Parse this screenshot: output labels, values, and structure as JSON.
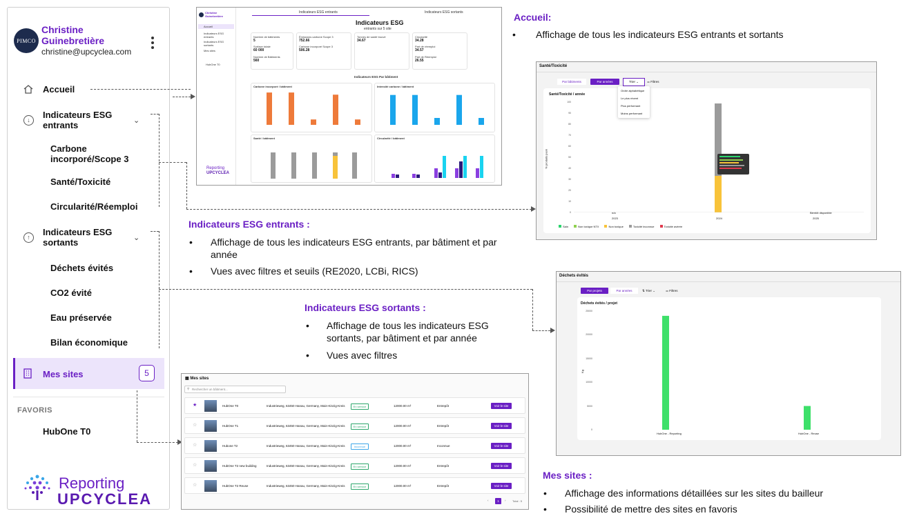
{
  "sidebar": {
    "avatar_text": "PIMCO",
    "user_name": "Christine Guinebretière",
    "user_email": "christine@upcyclea.com",
    "nav": {
      "accueil": "Accueil",
      "esg_entrants": "Indicateurs ESG entrants",
      "sub_entrants": [
        "Carbone incorporé/Scope 3",
        "Santé/Toxicité",
        "Circularité/Réemploi"
      ],
      "esg_sortants": "Indicateurs ESG sortants",
      "sub_sortants": [
        "Déchets évités",
        "CO2 évité",
        "Eau préservée",
        "Bilan économique"
      ],
      "mes_sites": "Mes sites",
      "mes_sites_count": "5"
    },
    "favoris_heading": "FAVORIS",
    "favoris": [
      "HubOne T0"
    ],
    "logo_top": "Reporting",
    "logo_bottom": "UPCYCLEA"
  },
  "annotations": {
    "accueil_title": "Accueil:",
    "accueil_bullets": [
      "Affichage de tous les indicateurs ESG entrants et sortants"
    ],
    "entrants_title": "Indicateurs ESG entrants :",
    "entrants_bullets": [
      "Affichage de tous les indicateurs ESG entrants, par bâtiment et par année",
      "Vues avec filtres et seuils (RE2020, LCBi, RICS)"
    ],
    "sortants_title": "Indicateurs ESG sortants :",
    "sortants_bullets": [
      "Affichage de tous les indicateurs ESG sortants, par bâtiment et par année",
      "Vues avec filtres"
    ],
    "sites_title": "Mes sites :",
    "sites_bullets": [
      "Affichage des informations détaillées sur les sites du bailleur",
      "Possibilité de mettre des sites en favoris"
    ]
  },
  "dashboard": {
    "tab_entrants": "Indicateurs ESG entrants",
    "tab_sortants": "Indicateurs ESG sortants",
    "title": "Indicateurs ESG",
    "subtitle": "entrants sur 5 site",
    "stats": [
      {
        "label": "Nombre de bâtiments",
        "value": "5"
      },
      {
        "label": "Surface totale",
        "value": "60 000"
      },
      {
        "label": "Nombre de Bâtiments",
        "value": "560"
      },
      {
        "label": "Émissions carbone Scope 3",
        "value": "752.66"
      },
      {
        "label": "Carbone incorporé Scope 3",
        "value": "506.28"
      },
      {
        "label": "Tonnes de santé trouvé",
        "value": "34.67"
      },
      {
        "label": "Circularité",
        "value": "34.28"
      },
      {
        "label": "Part de réemploi",
        "value": "34.57"
      },
      {
        "label": "Part de Réemploi",
        "value": "26.55"
      }
    ],
    "section_title": "Indicateurs ESG Par bâtiment",
    "chart_titles": [
      "Carbone incorporé / bâtiment",
      "Intensité carbone / bâtiment",
      "Santé / bâtiment",
      "Circularité / bâtiment"
    ],
    "sidebar_items": [
      "Accueil",
      "Indicateurs ESG entrants",
      "Indicateurs ESG sortants",
      "Mes sites"
    ],
    "sidebar_favs": [
      "HubOne T0"
    ],
    "logo_top": "Reporting",
    "logo_bottom": "UPCYCLEA"
  },
  "sante_panel": {
    "title": "Santé/Toxicité",
    "btn_batiments": "Par bâtiments",
    "btn_annees": "Par années",
    "btn_trier": "Trier",
    "btn_filtres": "Filtres",
    "dropdown": [
      "Ordre alphabétique",
      "Le plus récent",
      "Plus performant",
      "Moins performant"
    ],
    "chart_title": "Santé/Toxicité / année",
    "y_ticks": [
      "100",
      "90",
      "80",
      "70",
      "60",
      "50",
      "40",
      "30",
      "20",
      "10",
      "0"
    ],
    "x_ticks": [
      "2023",
      "2024",
      "2025"
    ],
    "x_notes": [
      "n/a",
      "Bientôt disponible"
    ],
    "ylabel": "% produits pack",
    "legend": [
      "Sain",
      "Non toxique NTX",
      "Non toxique",
      "Toxicité inconnue",
      "Toxicité avérée"
    ],
    "legend_colors": [
      "#2bd46d",
      "#8fd14f",
      "#f8c33a",
      "#9b9b9b",
      "#e03a4e"
    ]
  },
  "dechets_panel": {
    "title": "Déchets évités",
    "btn_projets": "Par projets",
    "btn_annees": "Par années",
    "btn_trier": "Trier",
    "btn_filtres": "Filtres",
    "chart_title": "Déchets évités / projet",
    "y_ticks": [
      "25000",
      "20000",
      "15000",
      "10000",
      "5000",
      "0"
    ],
    "ylabel": "Kg",
    "x_ticks": [
      "HubOne - Reporting",
      "HubOne - Reuse"
    ]
  },
  "sites_panel": {
    "title": "Mes sites",
    "search_placeholder": "Rechercher un bâtiment...",
    "rows": [
      {
        "name": "HubOne T0",
        "address": "Industrieweg, 63450 Hanau, Germany, Main-Kinzig-Kreis",
        "status": "En service",
        "surface": "12000.00 m²",
        "type": "Entrepôt",
        "btn": "Voir le site",
        "fav": "★"
      },
      {
        "name": "HubOne T1",
        "address": "Industrieweg, 63450 Hanau, Germany, Main-Kinzig-Kreis",
        "status": "En service",
        "surface": "12000.00 m²",
        "type": "Entrepôt",
        "btn": "Voir le site",
        "fav": "☆"
      },
      {
        "name": "Hubone T2",
        "address": "Industrieweg, 63450 Hanau, Germany, Main-Kinzig-Kreis",
        "status": "Inconnue",
        "surface": "12000.00 m²",
        "type": "Inconnue",
        "btn": "Voir le site",
        "fav": "☆"
      },
      {
        "name": "HubOne T2 new building",
        "address": "Industrieweg, 63450 Hanau, Germany, Main-Kinzig-Kreis",
        "status": "En service",
        "surface": "12000.00 m²",
        "type": "Entrepôt",
        "btn": "Voir le site",
        "fav": "☆"
      },
      {
        "name": "HubOne T2 Reuse",
        "address": "Industrieweg, 63450 Hanau, Germany, Main-Kinzig-Kreis",
        "status": "En service",
        "surface": "12000.00 m²",
        "type": "Entrepôt",
        "btn": "Voir le site",
        "fav": "☆"
      }
    ],
    "pager": [
      "‹",
      "1",
      "›"
    ],
    "total": "Total : 5"
  },
  "chart_data": [
    {
      "type": "bar",
      "title": "Carbone incorporé / bâtiment",
      "categories": [
        "HubOne T0",
        "HubOne T1",
        "HubOne T2",
        "HubOne T2 new building",
        "HubOne T2 Reuse"
      ],
      "values": [
        1500,
        1500,
        250,
        1400,
        250
      ]
    },
    {
      "type": "bar",
      "title": "Intensité carbone / bâtiment",
      "categories": [
        "HubOne T0",
        "HubOne T1",
        "HubOne T2",
        "HubOne T2 new building",
        "HubOne T2 Reuse"
      ],
      "values": [
        1300,
        1300,
        300,
        1300,
        300
      ]
    },
    {
      "type": "bar",
      "title": "Santé/Toxicité / année",
      "categories": [
        "2023",
        "2024",
        "2025"
      ],
      "series": [
        {
          "name": "Non toxique",
          "values": [
            0,
            35,
            0
          ]
        },
        {
          "name": "Toxicité inconnue",
          "values": [
            0,
            65,
            0
          ]
        }
      ],
      "ylim": [
        0,
        100
      ]
    },
    {
      "type": "bar",
      "title": "Déchets évités / projet",
      "categories": [
        "HubOne - Reporting",
        "HubOne - Reuse"
      ],
      "values": [
        24000,
        5000
      ],
      "ylabel": "Kg",
      "ylim": [
        0,
        25000
      ]
    }
  ]
}
